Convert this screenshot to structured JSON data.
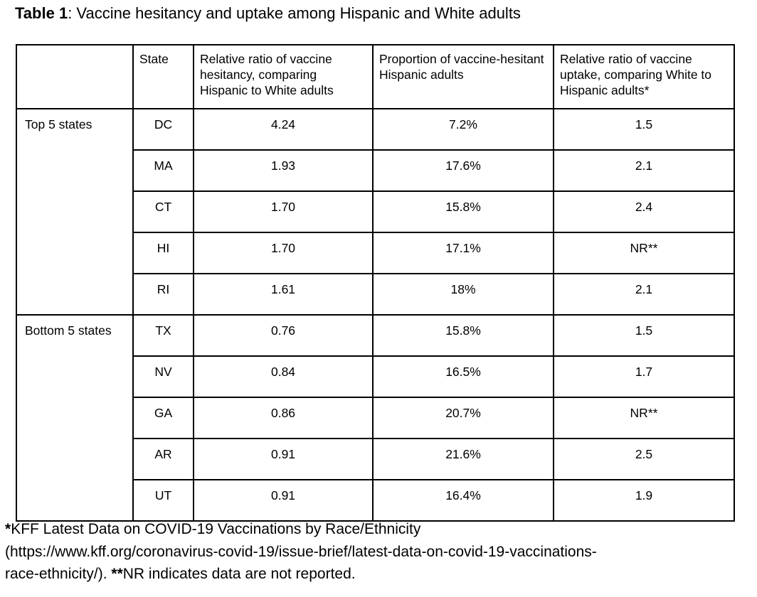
{
  "title": {
    "segments": [
      {
        "text": "Table 1",
        "bold": true
      },
      {
        "text": ": Vaccine hesitancy and uptake among Hispanic and White adults",
        "bold": false
      }
    ]
  },
  "table": {
    "column_headers": [
      "",
      "State",
      "Relative ratio of vaccine hesitancy, comparing Hispanic to White adults",
      "Proportion of vaccine-hesitant Hispanic adults",
      "Relative ratio of vaccine uptake, comparing White to Hispanic adults*"
    ],
    "groups": [
      {
        "label": "Top 5 states",
        "rows": [
          {
            "state": "DC",
            "hesitancy_ratio": "4.24",
            "hesitant_proportion": "7.2%",
            "uptake_ratio": "1.5"
          },
          {
            "state": "MA",
            "hesitancy_ratio": "1.93",
            "hesitant_proportion": "17.6%",
            "uptake_ratio": "2.1"
          },
          {
            "state": "CT",
            "hesitancy_ratio": "1.70",
            "hesitant_proportion": "15.8%",
            "uptake_ratio": "2.4"
          },
          {
            "state": "HI",
            "hesitancy_ratio": "1.70",
            "hesitant_proportion": "17.1%",
            "uptake_ratio": "NR**"
          },
          {
            "state": "RI",
            "hesitancy_ratio": "1.61",
            "hesitant_proportion": "18%",
            "uptake_ratio": "2.1"
          }
        ]
      },
      {
        "label": "Bottom 5 states",
        "rows": [
          {
            "state": "TX",
            "hesitancy_ratio": "0.76",
            "hesitant_proportion": "15.8%",
            "uptake_ratio": "1.5"
          },
          {
            "state": "NV",
            "hesitancy_ratio": "0.84",
            "hesitant_proportion": "16.5%",
            "uptake_ratio": "1.7"
          },
          {
            "state": "GA",
            "hesitancy_ratio": "0.86",
            "hesitant_proportion": "20.7%",
            "uptake_ratio": "NR**"
          },
          {
            "state": "AR",
            "hesitancy_ratio": "0.91",
            "hesitant_proportion": "21.6%",
            "uptake_ratio": "2.5"
          },
          {
            "state": "UT",
            "hesitancy_ratio": "0.91",
            "hesitant_proportion": "16.4%",
            "uptake_ratio": "1.9"
          }
        ]
      }
    ]
  },
  "footnote": {
    "full_text": "*KFF Latest Data on COVID-19 Vaccinations by Race/Ethnicity (https://www.kff.org/coronavirus-covid-19/issue-brief/latest-data-on-covid-19-vaccinations-race-ethnicity/). **NR indicates data are not reported.",
    "lines": [
      [
        {
          "text": "*",
          "bold": true
        },
        {
          "text": "KFF Latest Data on COVID-19 Vaccinations by Race/Ethnicity",
          "bold": false
        }
      ],
      [
        {
          "text": "(https://www.kff.org/coronavirus-covid-19/issue-brief/latest-data-on-covid-19-vaccinations-",
          "bold": false
        }
      ],
      [
        {
          "text": "race-ethnicity/). ",
          "bold": false
        },
        {
          "text": "**",
          "bold": true
        },
        {
          "text": "NR indicates data are not reported.",
          "bold": false
        }
      ]
    ]
  },
  "colors": {
    "text": "#000000",
    "border": "#000000",
    "background": "#ffffff"
  }
}
